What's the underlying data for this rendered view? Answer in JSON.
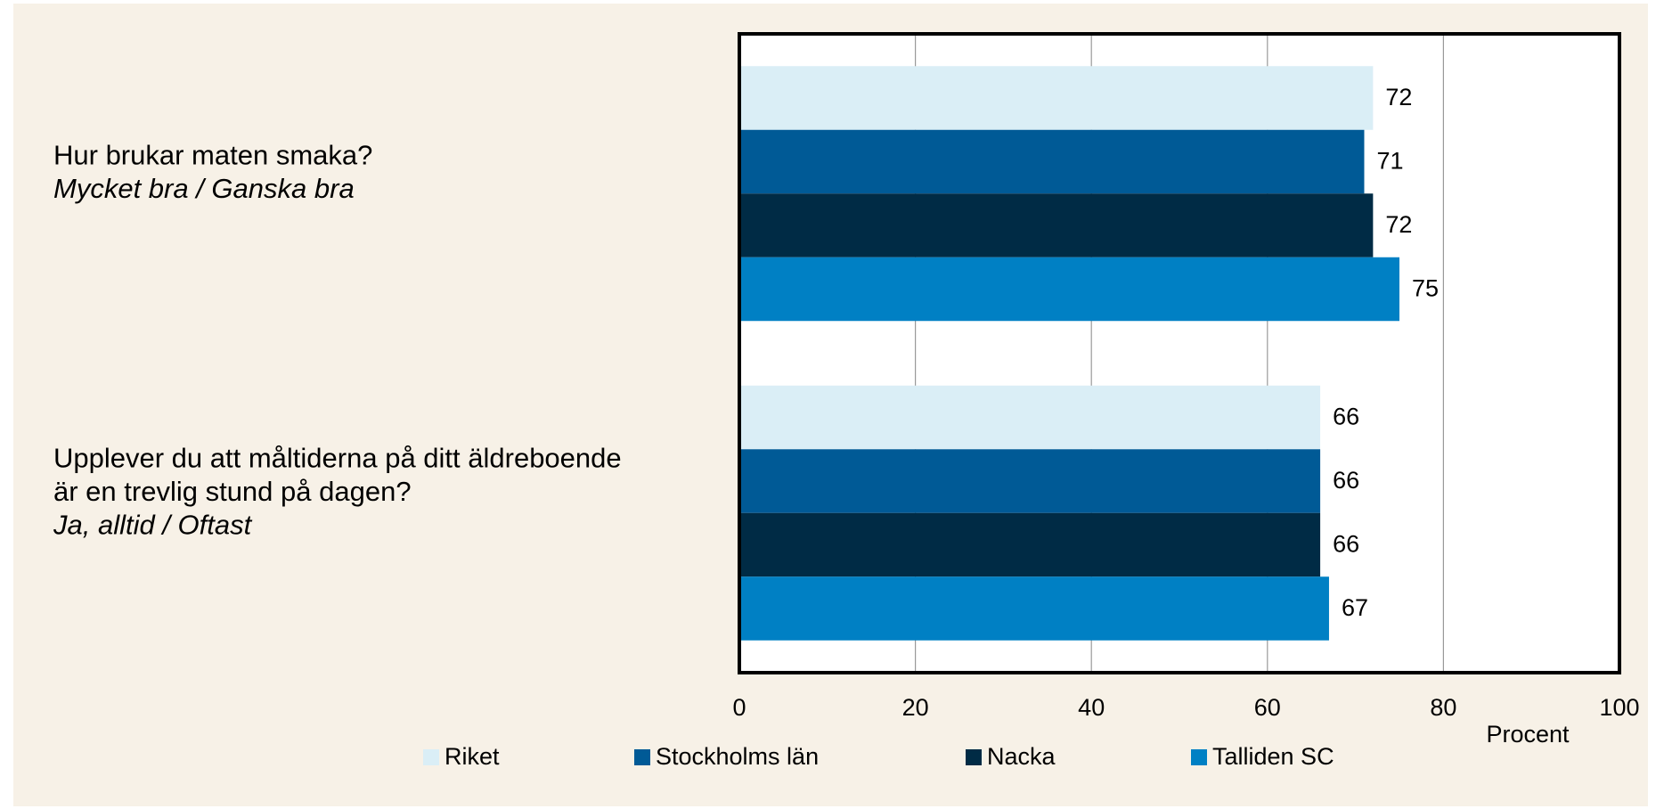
{
  "chart_data": {
    "type": "hbar",
    "categories": [
      [
        "Hur brukar maten smaka?",
        "Mycket bra / Ganska bra"
      ],
      [
        "Upplever du att måltiderna på ditt äldreboende",
        "är en trevlig stund på dagen?",
        "Ja, alltid / Oftast"
      ]
    ],
    "series": [
      {
        "name": "Riket",
        "color": "#daeef6",
        "values": [
          72,
          66
        ]
      },
      {
        "name": "Stockholms län",
        "color": "#005a96",
        "values": [
          71,
          66
        ]
      },
      {
        "name": "Nacka",
        "color": "#002b45",
        "values": [
          72,
          66
        ]
      },
      {
        "name": "Talliden SC",
        "color": "#0080c4",
        "values": [
          75,
          67
        ]
      }
    ],
    "xlabel": "Procent",
    "xlim": [
      0,
      100
    ],
    "xticks": [
      0,
      20,
      40,
      60,
      80,
      100
    ],
    "grid": true,
    "legend": "bottom"
  }
}
